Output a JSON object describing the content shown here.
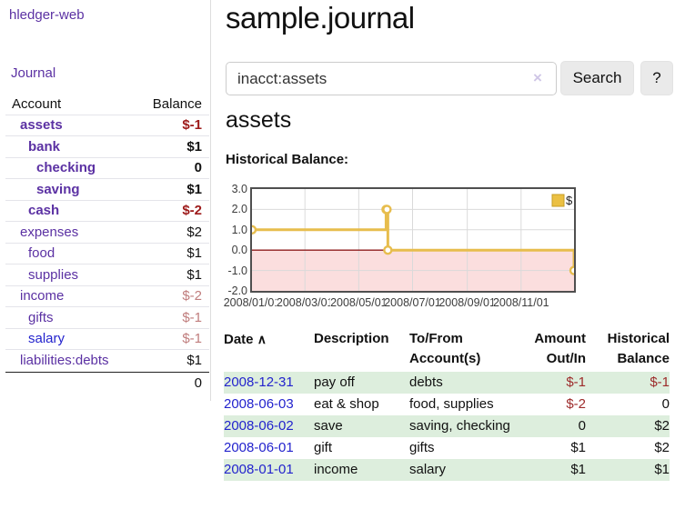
{
  "app": {
    "title": "hledger-web"
  },
  "colors": {
    "link_purple": "#5b31a3",
    "link_blue": "#2323cd",
    "negative_strong": "#9d1a1a",
    "negative_muted": "#c07d7d",
    "table_negative": "#9d2b2b",
    "row_green": "#ddeedd",
    "chart_line_gold": "#e7bd4d",
    "chart_legend_fill": "#ebc043",
    "chart_legend_border": "#c79e23",
    "chart_negative_pink": "#fbdede",
    "chart_zero_line": "#8f1d1d",
    "chart_grid": "#dadada"
  },
  "sidebar": {
    "journal_label": "Journal",
    "accounts": {
      "headers": {
        "account": "Account",
        "balance": "Balance"
      },
      "rows": [
        {
          "name": "assets",
          "balance": "$-1",
          "indent": 1,
          "bold": true,
          "neg": "strong"
        },
        {
          "name": "bank",
          "balance": "$1",
          "indent": 2,
          "bold": true
        },
        {
          "name": "checking",
          "balance": "0",
          "indent": 3,
          "bold": true
        },
        {
          "name": "saving",
          "balance": "$1",
          "indent": 3,
          "bold": true
        },
        {
          "name": "cash",
          "balance": "$-2",
          "indent": 2,
          "bold": true,
          "neg": "strong"
        },
        {
          "name": "expenses",
          "balance": "$2",
          "indent": 1
        },
        {
          "name": "food",
          "balance": "$1",
          "indent": 2
        },
        {
          "name": "supplies",
          "balance": "$1",
          "indent": 2
        },
        {
          "name": "income",
          "balance": "$-2",
          "indent": 1,
          "neg": "muted"
        },
        {
          "name": "gifts",
          "balance": "$-1",
          "indent": 2,
          "neg": "muted"
        },
        {
          "name": "salary",
          "balance": "$-1",
          "indent": 2,
          "neg": "muted",
          "link": "blue"
        },
        {
          "name": "liabilities:debts",
          "balance": "$1",
          "indent": 1
        }
      ],
      "total": "0"
    }
  },
  "main": {
    "title": "sample.journal",
    "search": {
      "value": "inacct:assets",
      "clear_icon": "×",
      "button_label": "Search",
      "help_label": "?"
    },
    "account_heading": "assets",
    "balance_label": "Historical Balance:"
  },
  "chart_data": {
    "type": "line",
    "step": true,
    "title": "Historical Balance",
    "legend": "$",
    "legend_position": "top-right",
    "grid": true,
    "negative_region_shaded": true,
    "ylim": [
      -2,
      3
    ],
    "x_range": [
      "2008-01-01",
      "2008-12-31"
    ],
    "y_ticks": [
      "3.0",
      "2.0",
      "1.0",
      "0.0",
      "-1.0",
      "-2.0"
    ],
    "x_ticks": [
      "2008/01/01",
      "2008/03/01",
      "2008/05/01",
      "2008/07/01",
      "2008/09/01",
      "2008/11/01"
    ],
    "series": [
      {
        "name": "$",
        "points": [
          [
            "2008-01-01",
            1
          ],
          [
            "2008-06-01",
            2
          ],
          [
            "2008-06-02",
            2
          ],
          [
            "2008-06-03",
            0
          ],
          [
            "2008-12-31",
            -1
          ]
        ]
      }
    ]
  },
  "register": {
    "headers": {
      "date": "Date",
      "sort_indicator": "∧",
      "description": "Description",
      "accounts": "To/From Account(s)",
      "amount": "Amount Out/In",
      "balance": "Historical Balance"
    },
    "rows": [
      {
        "date": "2008-12-31",
        "description": "pay off",
        "accounts": "debts",
        "amount": "$-1",
        "balance": "$-1",
        "amount_neg": true,
        "balance_neg": true,
        "shaded": true
      },
      {
        "date": "2008-06-03",
        "description": "eat & shop",
        "accounts": "food, supplies",
        "amount": "$-2",
        "balance": "0",
        "amount_neg": true,
        "balance_neg": false,
        "shaded": false
      },
      {
        "date": "2008-06-02",
        "description": "save",
        "accounts": "saving, checking",
        "amount": "0",
        "balance": "$2",
        "amount_neg": false,
        "balance_neg": false,
        "shaded": true
      },
      {
        "date": "2008-06-01",
        "description": "gift",
        "accounts": "gifts",
        "amount": "$1",
        "balance": "$2",
        "amount_neg": false,
        "balance_neg": false,
        "shaded": false
      },
      {
        "date": "2008-01-01",
        "description": "income",
        "accounts": "salary",
        "amount": "$1",
        "balance": "$1",
        "amount_neg": false,
        "balance_neg": false,
        "shaded": true
      }
    ]
  }
}
